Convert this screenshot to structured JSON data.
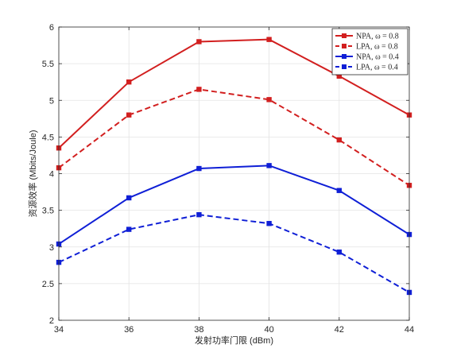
{
  "chart_data": {
    "type": "line",
    "x": [
      34,
      36,
      38,
      40,
      42,
      44
    ],
    "xlabel": "发射功率门限 (dBm)",
    "ylabel": "资源效率 (Mbits/Joule)",
    "xlim": [
      34,
      44
    ],
    "ylim": [
      2,
      6
    ],
    "xticks": [
      34,
      36,
      38,
      40,
      42,
      44
    ],
    "yticks": [
      2,
      2.5,
      3,
      3.5,
      4,
      4.5,
      5,
      5.5,
      6
    ],
    "xtick_labels": [
      "34",
      "36",
      "38",
      "40",
      "42",
      "44"
    ],
    "ytick_labels": [
      "2",
      "2.5",
      "3",
      "3.5",
      "4",
      "4.5",
      "5",
      "5.5",
      "6"
    ],
    "grid": true,
    "legend_position": "top-right",
    "series": [
      {
        "name": "NPA, ω = 0.8",
        "values": [
          4.35,
          5.25,
          5.8,
          5.83,
          5.33,
          4.8
        ],
        "color": "#d21f1f",
        "dash": "solid",
        "marker": "square"
      },
      {
        "name": "LPA, ω = 0.8",
        "values": [
          4.08,
          4.8,
          5.15,
          5.01,
          4.46,
          3.84
        ],
        "color": "#d21f1f",
        "dash": "dashed",
        "marker": "square"
      },
      {
        "name": "NPA, ω = 0.4",
        "values": [
          3.04,
          3.67,
          4.07,
          4.11,
          3.77,
          3.17
        ],
        "color": "#0f1fd6",
        "dash": "solid",
        "marker": "square"
      },
      {
        "name": "LPA, ω = 0.4",
        "values": [
          2.79,
          3.24,
          3.44,
          3.32,
          2.93,
          2.38
        ],
        "color": "#0f1fd6",
        "dash": "dashed",
        "marker": "square"
      }
    ]
  }
}
